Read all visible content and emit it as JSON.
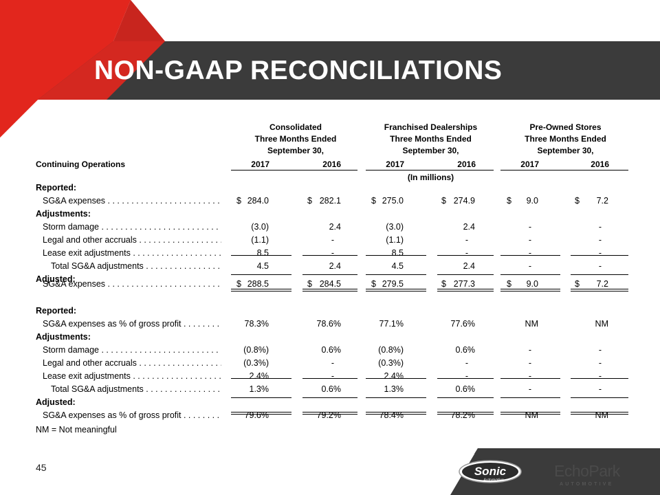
{
  "slide": {
    "title": "NON-GAAP RECONCILIATIONS",
    "page_number": "45",
    "note": "NM = Not meaningful",
    "units": "(In millions)",
    "colors": {
      "banner": "#3b3b3b",
      "accent_red": "#e2261d",
      "accent_dark_red": "#c8251e"
    }
  },
  "table": {
    "section_label": "Continuing Operations",
    "groups": [
      {
        "line1": "Consolidated",
        "line2": "Three Months Ended",
        "line3": "September 30,"
      },
      {
        "line1": "Franchised Dealerships",
        "line2": "Three Months Ended",
        "line3": "September 30,"
      },
      {
        "line1": "Pre-Owned Stores",
        "line2": "Three Months Ended",
        "line3": "September 30,"
      }
    ],
    "years": [
      "2017",
      "2016",
      "2017",
      "2016",
      "2017",
      "2016"
    ],
    "rows": [
      {
        "label": "Reported:",
        "bold": true,
        "values": []
      },
      {
        "label": "SG&A expenses",
        "values": [
          "284.0",
          "282.1",
          "275.0",
          "274.9",
          "9.0",
          "7.2"
        ],
        "dollar": true
      },
      {
        "label": "Adjustments:",
        "bold": true,
        "values": []
      },
      {
        "label": "Storm damage",
        "values": [
          "(3.0)",
          "2.4",
          "(3.0)",
          "2.4",
          "-",
          "-"
        ]
      },
      {
        "label": "Legal and other accruals",
        "values": [
          "(1.1)",
          "-",
          "(1.1)",
          "-",
          "-",
          "-"
        ]
      },
      {
        "label": "Lease exit adjustments",
        "values": [
          "8.5",
          "-",
          "8.5",
          "-",
          "-",
          "-"
        ]
      },
      {
        "label": "Total SG&A adjustments",
        "values": [
          "4.5",
          "2.4",
          "4.5",
          "2.4",
          "-",
          "-"
        ]
      },
      {
        "label": "Adjusted:",
        "bold": true,
        "values": []
      },
      {
        "label": "SG&A expenses",
        "values": [
          "288.5",
          "284.5",
          "279.5",
          "277.3",
          "9.0",
          "7.2"
        ],
        "dollar": true
      },
      {
        "label": "Reported:",
        "bold": true,
        "values": []
      },
      {
        "label": "SG&A expenses as % of gross profit",
        "values": [
          "78.3%",
          "78.6%",
          "77.1%",
          "77.6%",
          "NM",
          "NM"
        ]
      },
      {
        "label": "Adjustments:",
        "bold": true,
        "values": []
      },
      {
        "label": "Storm damage",
        "values": [
          "(0.8%)",
          "0.6%",
          "(0.8%)",
          "0.6%",
          "-",
          "-"
        ]
      },
      {
        "label": "Legal and other accruals",
        "values": [
          "(0.3%)",
          "-",
          "(0.3%)",
          "-",
          "-",
          "-"
        ]
      },
      {
        "label": "Lease exit adjustments",
        "values": [
          "2.4%",
          "-",
          "2.4%",
          "-",
          "-",
          "-"
        ]
      },
      {
        "label": "Total SG&A adjustments",
        "values": [
          "1.3%",
          "0.6%",
          "1.3%",
          "0.6%",
          "-",
          "-"
        ]
      },
      {
        "label": "Adjusted:",
        "bold": true,
        "values": []
      },
      {
        "label": "SG&A expenses as % of gross profit",
        "values": [
          "79.6%",
          "79.2%",
          "78.4%",
          "78.2%",
          "NM",
          "NM"
        ]
      }
    ],
    "dollar_sign": "$"
  },
  "logos": {
    "sonic_main": "Sonic",
    "sonic_sub": "Automotive",
    "echopark_main": "EchoPark",
    "echopark_sub": "AUTOMOTIVE"
  }
}
